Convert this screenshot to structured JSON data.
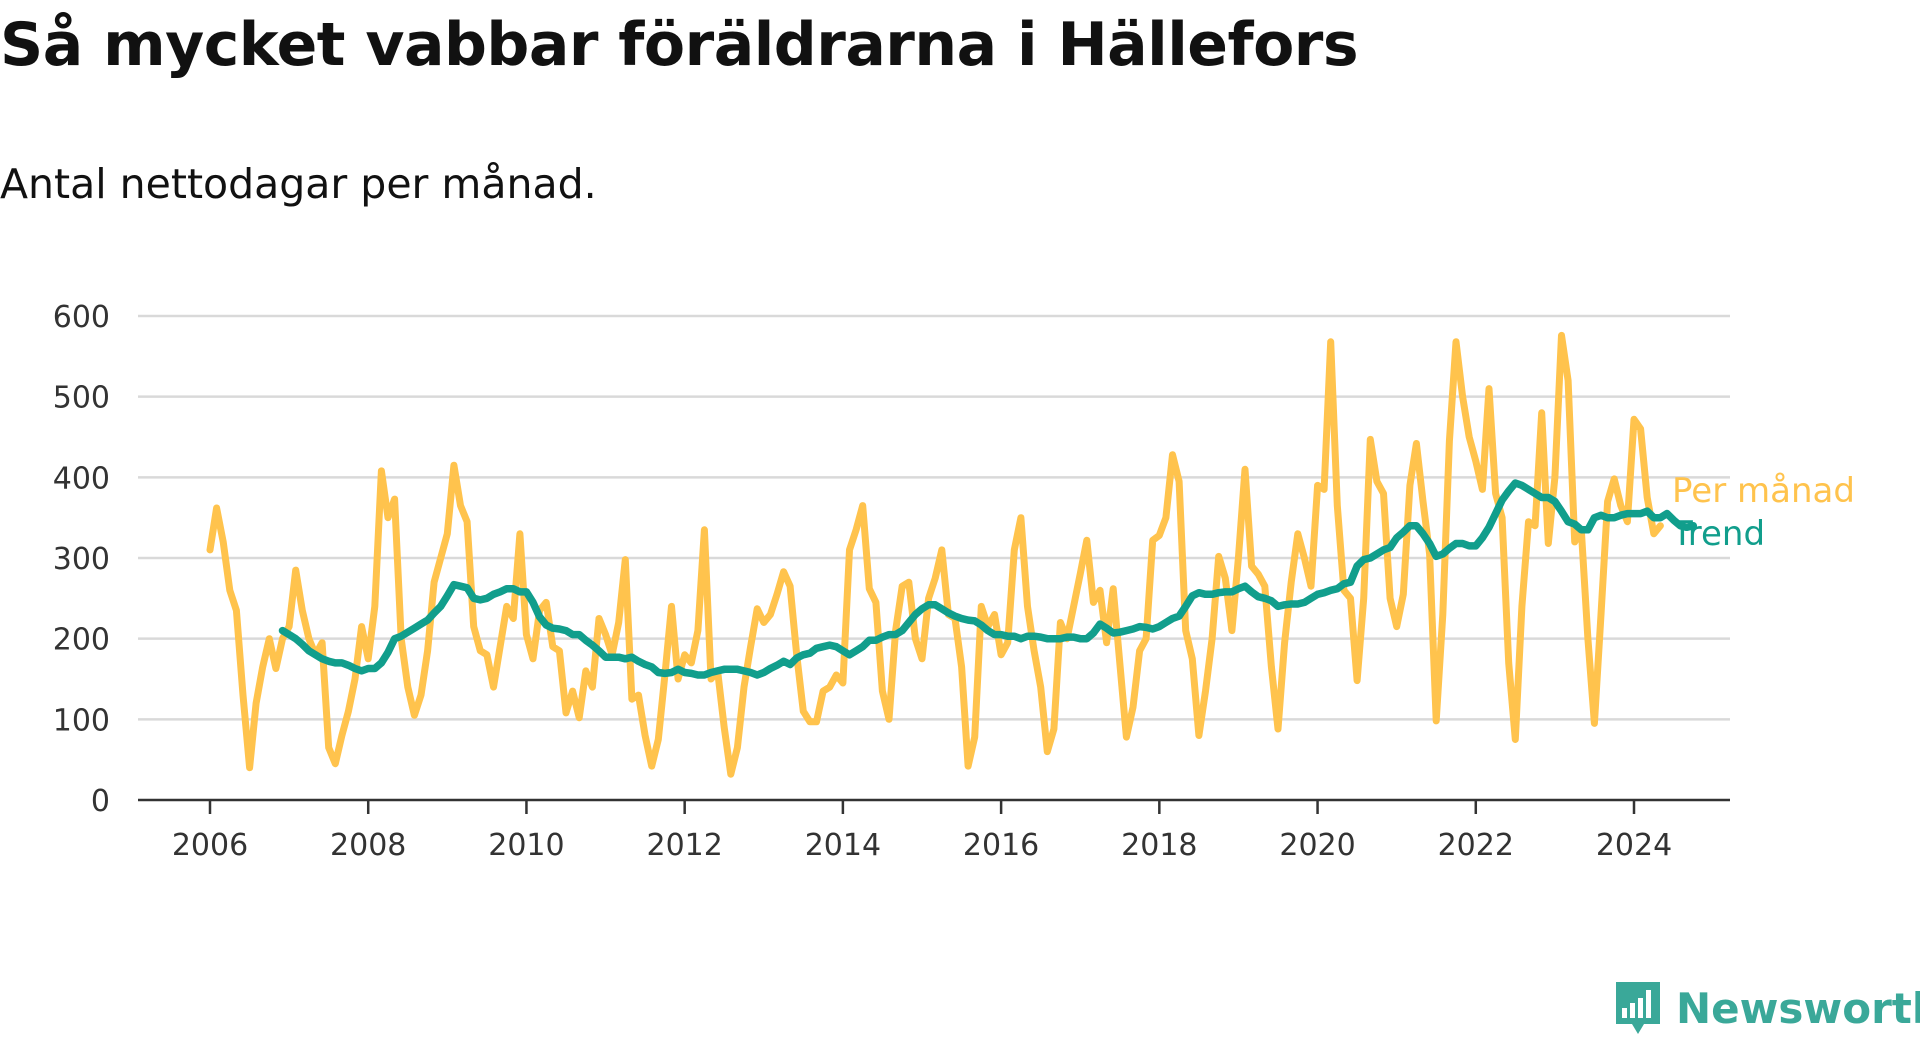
{
  "header": {
    "title": "Så mycket vabbar föräldrarna i Hällefors",
    "subtitle": "Antal nettodagar per månad."
  },
  "brand": {
    "name": "Newsworthy",
    "icon": "newsworthy-logo-icon",
    "color": "#3aa899"
  },
  "chart_data": {
    "type": "line",
    "title": "Så mycket vabbar föräldrarna i Hällefors",
    "subtitle": "Antal nettodagar per månad.",
    "xlabel": "",
    "ylabel": "",
    "xlim": [
      2006,
      2024.4
    ],
    "ylim": [
      0,
      600
    ],
    "x_ticks": [
      2006,
      2008,
      2010,
      2012,
      2014,
      2016,
      2018,
      2020,
      2022,
      2024
    ],
    "y_ticks": [
      0,
      100,
      200,
      300,
      400,
      500,
      600
    ],
    "grid": "horizontal",
    "legend": "end-of-line labels",
    "series": [
      {
        "name": "Per månad",
        "color": "#ffc34d",
        "x_start": 2006,
        "step": 0.0833333,
        "values": [
          310,
          362,
          320,
          260,
          235,
          130,
          40,
          120,
          165,
          200,
          163,
          200,
          215,
          285,
          235,
          200,
          180,
          195,
          65,
          45,
          80,
          110,
          150,
          215,
          175,
          240,
          408,
          350,
          373,
          200,
          140,
          105,
          130,
          185,
          270,
          300,
          330,
          415,
          365,
          345,
          215,
          185,
          180,
          140,
          190,
          240,
          225,
          330,
          205,
          175,
          235,
          245,
          190,
          185,
          108,
          135,
          102,
          160,
          140,
          225,
          205,
          180,
          220,
          298,
          125,
          130,
          80,
          42,
          75,
          155,
          240,
          150,
          180,
          170,
          210,
          335,
          150,
          160,
          90,
          32,
          65,
          140,
          190,
          237,
          220,
          230,
          255,
          283,
          265,
          180,
          110,
          97,
          97,
          135,
          140,
          155,
          145,
          310,
          335,
          365,
          262,
          245,
          135,
          100,
          210,
          265,
          270,
          200,
          175,
          250,
          275,
          310,
          230,
          225,
          165,
          42,
          78,
          240,
          215,
          230,
          180,
          195,
          310,
          350,
          240,
          185,
          140,
          60,
          88,
          220,
          200,
          240,
          280,
          322,
          245,
          260,
          195,
          262,
          170,
          78,
          115,
          185,
          200,
          322,
          328,
          350,
          428,
          395,
          210,
          175,
          80,
          135,
          200,
          302,
          275,
          210,
          300,
          410,
          290,
          280,
          265,
          165,
          88,
          195,
          270,
          330,
          300,
          265,
          390,
          385,
          568,
          365,
          260,
          250,
          148,
          250,
          447,
          395,
          380,
          250,
          215,
          255,
          390,
          442,
          370,
          305,
          98,
          230,
          445,
          568,
          500,
          450,
          420,
          385,
          510,
          380,
          350,
          170,
          75,
          240,
          345,
          340,
          480,
          318,
          400,
          576,
          520,
          320,
          335,
          200,
          95,
          230,
          370,
          398,
          365,
          345,
          472,
          460,
          375,
          330,
          340
        ]
      },
      {
        "name": "Trend",
        "color": "#119e8c",
        "x_start": 2006.9167,
        "step": 0.0833333,
        "values": [
          210,
          205,
          200,
          193,
          185,
          180,
          175,
          172,
          170,
          170,
          167,
          163,
          160,
          163,
          163,
          170,
          183,
          200,
          203,
          208,
          213,
          218,
          223,
          232,
          240,
          253,
          267,
          265,
          263,
          250,
          248,
          250,
          255,
          258,
          262,
          262,
          258,
          258,
          245,
          227,
          217,
          213,
          212,
          210,
          205,
          205,
          198,
          192,
          185,
          177,
          177,
          177,
          175,
          177,
          172,
          168,
          165,
          158,
          157,
          158,
          162,
          158,
          157,
          155,
          155,
          158,
          160,
          162,
          162,
          162,
          160,
          158,
          155,
          158,
          163,
          167,
          172,
          168,
          176,
          180,
          182,
          188,
          190,
          192,
          190,
          185,
          180,
          185,
          190,
          198,
          198,
          202,
          205,
          205,
          210,
          220,
          230,
          237,
          242,
          242,
          237,
          232,
          228,
          225,
          223,
          222,
          217,
          210,
          205,
          205,
          203,
          203,
          200,
          203,
          203,
          202,
          200,
          200,
          200,
          202,
          202,
          200,
          200,
          207,
          218,
          213,
          207,
          208,
          210,
          212,
          215,
          214,
          212,
          215,
          220,
          225,
          228,
          240,
          253,
          257,
          255,
          255,
          257,
          258,
          258,
          262,
          265,
          258,
          252,
          250,
          247,
          240,
          242,
          243,
          243,
          245,
          250,
          255,
          257,
          260,
          262,
          268,
          270,
          290,
          298,
          300,
          305,
          310,
          313,
          325,
          332,
          340,
          340,
          330,
          318,
          302,
          305,
          312,
          318,
          318,
          315,
          315,
          325,
          338,
          355,
          372,
          383,
          393,
          390,
          385,
          380,
          375,
          375,
          370,
          358,
          345,
          342,
          335,
          335,
          350,
          353,
          350,
          350,
          353,
          355,
          355,
          355,
          358,
          350,
          350,
          355,
          347,
          340,
          338,
          340
        ]
      }
    ]
  }
}
